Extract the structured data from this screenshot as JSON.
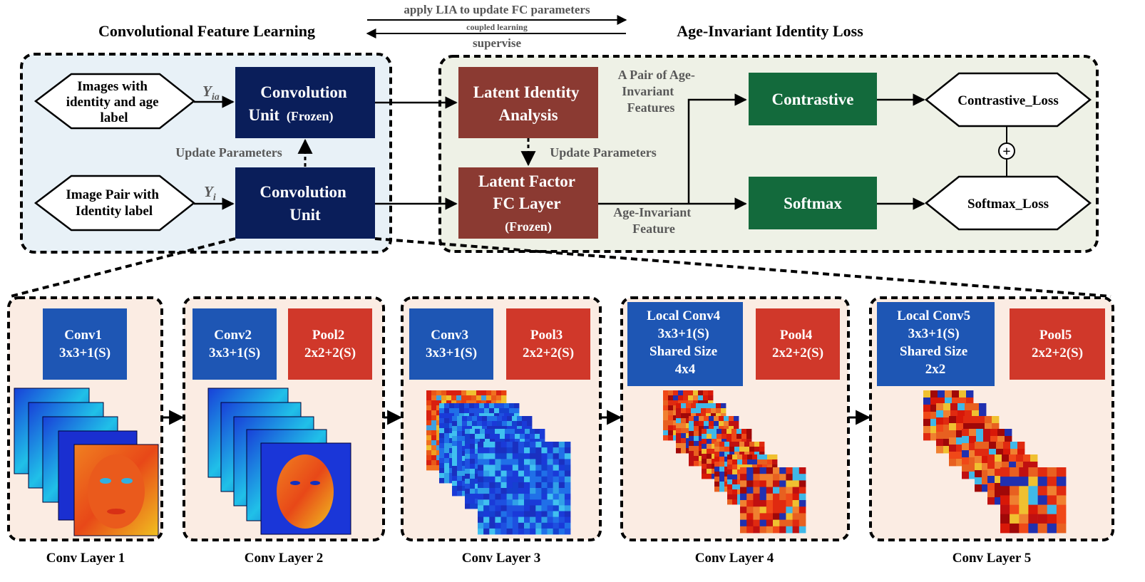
{
  "top_arrows": {
    "apply": "apply LIA to update FC parameters",
    "coupled": "coupled learning",
    "supervise": "supervise"
  },
  "sections": {
    "left_title": "Convolutional Feature Learning",
    "right_title": "Age-Invariant Identity Loss"
  },
  "inputs": {
    "top": [
      "Images with",
      "identity and age",
      "label"
    ],
    "bottom": [
      "Image Pair with",
      "Identity label"
    ],
    "y_ia": {
      "base": "Y",
      "sub": "ia"
    },
    "y_i": {
      "base": "Y",
      "sub": "i"
    }
  },
  "units": {
    "frozen": {
      "line1": "Convolution",
      "line2": "Unit",
      "suffix": "(Frozen)"
    },
    "conv": {
      "line1": "Convolution",
      "line2": "Unit"
    },
    "update_left": "Update Parameters"
  },
  "lia": {
    "line1": "Latent Identity",
    "line2": "Analysis"
  },
  "update_mid": "Update Parameters",
  "lffc": {
    "line1": "Latent Factor",
    "line2": "FC Layer",
    "line3": "(Frozen)"
  },
  "pair_features": [
    "A Pair of Age-",
    "Invariant",
    "Features"
  ],
  "single_feature": [
    "Age-Invariant",
    "Feature"
  ],
  "contrastive": "Contrastive",
  "softmax": "Softmax",
  "contrastive_loss": "Contrastive_Loss",
  "softmax_loss": "Softmax_Loss",
  "plus": "+",
  "conv_layers": [
    {
      "name": "Conv Layer 1",
      "blue": [
        "Conv1",
        "3x3+1(S)"
      ],
      "red": null,
      "viz": "face"
    },
    {
      "name": "Conv Layer 2",
      "blue": [
        "Conv2",
        "3x3+1(S)"
      ],
      "red": [
        "Pool2",
        "2x2+2(S)"
      ],
      "viz": "face"
    },
    {
      "name": "Conv Layer 3",
      "blue": [
        "Conv3",
        "3x3+1(S)"
      ],
      "red": [
        "Pool3",
        "2x2+2(S)"
      ],
      "viz": "pixel"
    },
    {
      "name": "Conv Layer 4",
      "blue": [
        "Local Conv4",
        "3x3+1(S)",
        "Shared Size",
        "4x4"
      ],
      "red": [
        "Pool4",
        "2x2+2(S)"
      ],
      "viz": "heat"
    },
    {
      "name": "Conv Layer 5",
      "blue": [
        "Local Conv5",
        "3x3+1(S)",
        "Shared Size",
        "2x2"
      ],
      "red": [
        "Pool5",
        "2x2+2(S)"
      ],
      "viz": "heat"
    }
  ],
  "colors": {
    "navy": "#0a1e5a",
    "brick": "#8b3a32",
    "green": "#136a3c",
    "layer_blue": "#1e56b4",
    "layer_red": "#d0382a",
    "left_panel_bg": "#e8f1f7",
    "right_panel_bg": "#eef1e6",
    "layer_bg": "#fbece3",
    "gray_text": "#595959"
  }
}
